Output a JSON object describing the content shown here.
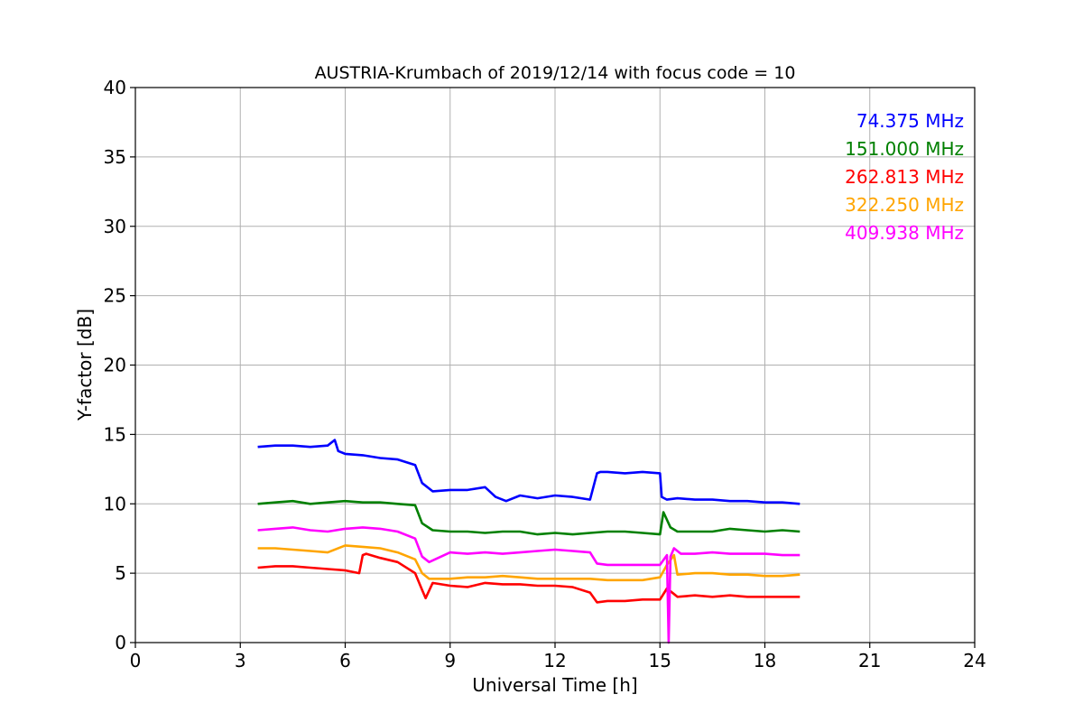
{
  "chart_data": {
    "type": "line",
    "title": "AUSTRIA-Krumbach of 2019/12/14 with focus code = 10",
    "xlabel": "Universal Time [h]",
    "ylabel": "Y-factor [dB]",
    "xlim": [
      0,
      24
    ],
    "ylim": [
      0,
      40
    ],
    "xticks": [
      0,
      3,
      6,
      9,
      12,
      15,
      18,
      21,
      24
    ],
    "yticks": [
      0,
      5,
      10,
      15,
      20,
      25,
      30,
      35,
      40
    ],
    "grid": true,
    "legend_position": "top-right",
    "series": [
      {
        "name": "74.375 MHz",
        "color": "#0000ff",
        "x": [
          3.5,
          4.0,
          4.5,
          5.0,
          5.5,
          5.7,
          5.8,
          6.0,
          6.5,
          7.0,
          7.5,
          8.0,
          8.2,
          8.5,
          9.0,
          9.5,
          10.0,
          10.3,
          10.6,
          11.0,
          11.5,
          12.0,
          12.5,
          13.0,
          13.2,
          13.3,
          13.5,
          14.0,
          14.5,
          15.0,
          15.05,
          15.2,
          15.5,
          16.0,
          16.5,
          17.0,
          17.5,
          18.0,
          18.5,
          19.0
        ],
        "y": [
          14.1,
          14.2,
          14.2,
          14.1,
          14.2,
          14.6,
          13.8,
          13.6,
          13.5,
          13.3,
          13.2,
          12.8,
          11.5,
          10.9,
          11.0,
          11.0,
          11.2,
          10.5,
          10.2,
          10.6,
          10.4,
          10.6,
          10.5,
          10.3,
          12.2,
          12.3,
          12.3,
          12.2,
          12.3,
          12.2,
          10.5,
          10.3,
          10.4,
          10.3,
          10.3,
          10.2,
          10.2,
          10.1,
          10.1,
          10.0
        ]
      },
      {
        "name": "151.000 MHz",
        "color": "#008000",
        "x": [
          3.5,
          4.0,
          4.5,
          5.0,
          5.5,
          6.0,
          6.5,
          7.0,
          7.5,
          8.0,
          8.2,
          8.5,
          9.0,
          9.5,
          10.0,
          10.5,
          11.0,
          11.5,
          12.0,
          12.5,
          13.0,
          13.5,
          14.0,
          14.5,
          15.0,
          15.1,
          15.3,
          15.5,
          16.0,
          16.5,
          17.0,
          17.5,
          18.0,
          18.5,
          19.0
        ],
        "y": [
          10.0,
          10.1,
          10.2,
          10.0,
          10.1,
          10.2,
          10.1,
          10.1,
          10.0,
          9.9,
          8.6,
          8.1,
          8.0,
          8.0,
          7.9,
          8.0,
          8.0,
          7.8,
          7.9,
          7.8,
          7.9,
          8.0,
          8.0,
          7.9,
          7.8,
          9.4,
          8.3,
          8.0,
          8.0,
          8.0,
          8.2,
          8.1,
          8.0,
          8.1,
          8.0
        ]
      },
      {
        "name": "262.813 MHz",
        "color": "#ff0000",
        "x": [
          3.5,
          4.0,
          4.5,
          5.0,
          5.5,
          6.0,
          6.4,
          6.5,
          6.6,
          7.0,
          7.5,
          8.0,
          8.2,
          8.3,
          8.5,
          9.0,
          9.5,
          10.0,
          10.5,
          11.0,
          11.5,
          12.0,
          12.5,
          13.0,
          13.2,
          13.5,
          14.0,
          14.5,
          15.0,
          15.2,
          15.4,
          15.5,
          16.0,
          16.5,
          17.0,
          17.5,
          18.0,
          18.5,
          19.0
        ],
        "y": [
          5.4,
          5.5,
          5.5,
          5.4,
          5.3,
          5.2,
          5.0,
          6.3,
          6.4,
          6.1,
          5.8,
          5.0,
          3.8,
          3.2,
          4.3,
          4.1,
          4.0,
          4.3,
          4.2,
          4.2,
          4.1,
          4.1,
          4.0,
          3.6,
          2.9,
          3.0,
          3.0,
          3.1,
          3.1,
          3.9,
          3.5,
          3.3,
          3.4,
          3.3,
          3.4,
          3.3,
          3.3,
          3.3,
          3.3
        ]
      },
      {
        "name": "322.250 MHz",
        "color": "#ffa500",
        "x": [
          3.5,
          4.0,
          4.5,
          5.0,
          5.5,
          6.0,
          6.5,
          7.0,
          7.5,
          8.0,
          8.2,
          8.4,
          9.0,
          9.5,
          10.0,
          10.5,
          11.0,
          11.5,
          12.0,
          12.5,
          13.0,
          13.5,
          14.0,
          14.5,
          15.0,
          15.2,
          15.4,
          15.5,
          16.0,
          16.5,
          17.0,
          17.5,
          18.0,
          18.5,
          19.0
        ],
        "y": [
          6.8,
          6.8,
          6.7,
          6.6,
          6.5,
          7.0,
          6.9,
          6.8,
          6.5,
          6.0,
          5.0,
          4.6,
          4.6,
          4.7,
          4.7,
          4.8,
          4.7,
          4.6,
          4.6,
          4.6,
          4.6,
          4.5,
          4.5,
          4.5,
          4.7,
          5.6,
          6.3,
          4.9,
          5.0,
          5.0,
          4.9,
          4.9,
          4.8,
          4.8,
          4.9
        ]
      },
      {
        "name": "409.938 MHz",
        "color": "#ff00ff",
        "x": [
          3.5,
          4.0,
          4.5,
          5.0,
          5.5,
          6.0,
          6.5,
          7.0,
          7.5,
          8.0,
          8.2,
          8.4,
          9.0,
          9.5,
          10.0,
          10.5,
          11.0,
          11.5,
          12.0,
          12.5,
          13.0,
          13.2,
          13.5,
          14.0,
          14.5,
          15.0,
          15.2,
          15.25,
          15.3,
          15.4,
          15.6,
          16.0,
          16.5,
          17.0,
          17.5,
          18.0,
          18.5,
          19.0
        ],
        "y": [
          8.1,
          8.2,
          8.3,
          8.1,
          8.0,
          8.2,
          8.3,
          8.2,
          8.0,
          7.5,
          6.2,
          5.8,
          6.5,
          6.4,
          6.5,
          6.4,
          6.5,
          6.6,
          6.7,
          6.6,
          6.5,
          5.7,
          5.6,
          5.6,
          5.6,
          5.6,
          6.3,
          0.0,
          6.2,
          6.8,
          6.4,
          6.4,
          6.5,
          6.4,
          6.4,
          6.4,
          6.3,
          6.3
        ]
      }
    ]
  }
}
